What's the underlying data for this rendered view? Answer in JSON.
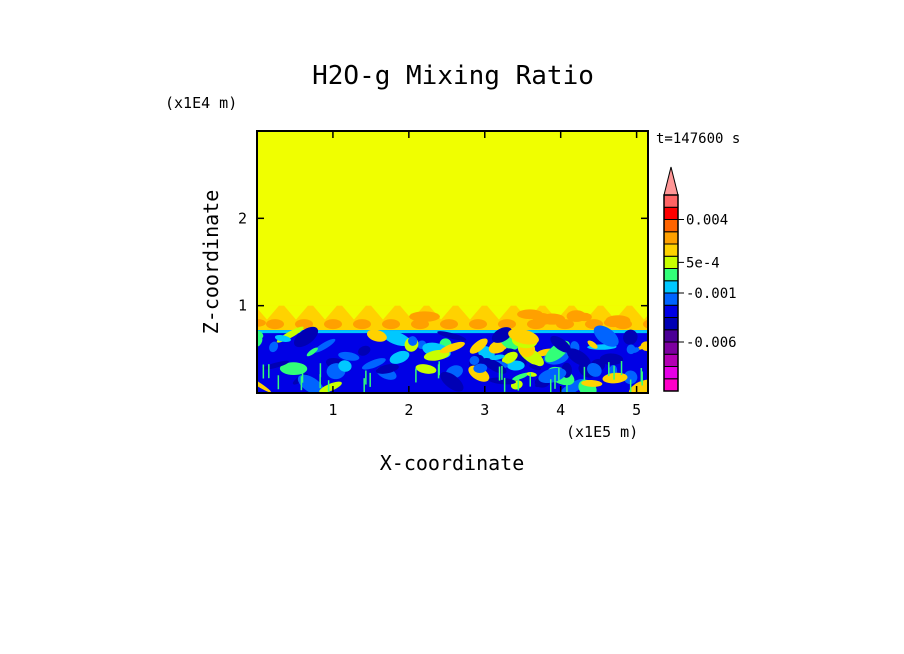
{
  "chart_data": {
    "type": "heatmap",
    "title": "H2O-g Mixing Ratio",
    "xlabel": "X-coordinate",
    "ylabel": "Z-coordinate",
    "x_scale_label": "(x1E5 m)",
    "y_scale_label": "(x1E4 m)",
    "time_label": "t=147600 s",
    "xlim": [
      0,
      5.15
    ],
    "ylim": [
      0,
      3.0
    ],
    "x_ticks": [
      1,
      2,
      3,
      4,
      5
    ],
    "y_ticks": [
      1,
      2
    ],
    "grid": false,
    "legend_placement": "right",
    "colorbar": {
      "levels": [
        {
          "color": "#ff00c8"
        },
        {
          "color": "#e600e6"
        },
        {
          "color": "#b400b4"
        },
        {
          "color": "#7d00a0"
        },
        {
          "color": "#4b0096"
        },
        {
          "color": "#0000b4"
        },
        {
          "color": "#0000e6"
        },
        {
          "color": "#0064ff"
        },
        {
          "color": "#00c8ff"
        },
        {
          "color": "#32ff78"
        },
        {
          "color": "#c8ff00"
        },
        {
          "color": "#ffd200"
        },
        {
          "color": "#ffa000"
        },
        {
          "color": "#ff6400"
        },
        {
          "color": "#ff0000"
        },
        {
          "color": "#ff6464"
        },
        {
          "color": "#ff9696"
        }
      ],
      "labels": [
        {
          "text": "-0.006",
          "level": 4
        },
        {
          "text": "-0.001",
          "level": 8
        },
        {
          "text": "5e-4",
          "level": 10.5
        },
        {
          "text": "0.004",
          "level": 14
        }
      ]
    },
    "regions": {
      "upper_value_color": "#f0ff00",
      "boundary_layer_top_km": 1.0,
      "mixed_layer_top_km": 0.72
    }
  }
}
